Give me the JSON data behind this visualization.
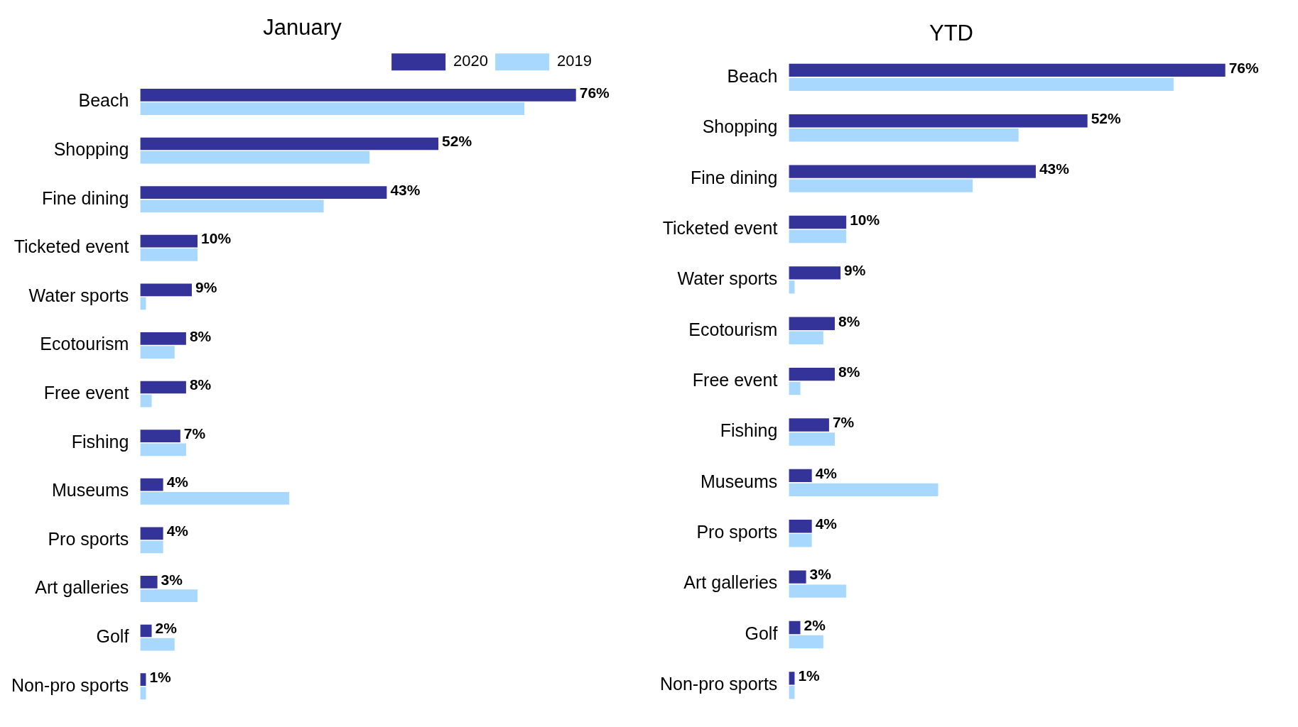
{
  "chart_data": [
    {
      "type": "bar",
      "orientation": "horizontal",
      "title": "January",
      "legend": "top right",
      "tick_labels": "y",
      "categories": [
        "Beach",
        "Shopping",
        "Fine dining",
        "Ticketed event",
        "Water sports",
        "Ecotourism",
        "Free event",
        "Fishing",
        "Museums",
        "Pro sports",
        "Art galleries",
        "Golf",
        "Non-pro sports"
      ],
      "series": [
        {
          "name": "2020",
          "color": "#333399",
          "values": [
            76,
            52,
            43,
            10,
            9,
            8,
            8,
            7,
            4,
            4,
            3,
            2,
            1
          ],
          "value_labels": [
            "76%",
            "52%",
            "43%",
            "10%",
            "9%",
            "8%",
            "8%",
            "7%",
            "4%",
            "4%",
            "3%",
            "2%",
            "1%"
          ]
        },
        {
          "name": "2019",
          "color": "#a9d8ff",
          "values": [
            67,
            40,
            32,
            10,
            1,
            6,
            2,
            8,
            26,
            4,
            10,
            6,
            1
          ]
        }
      ]
    },
    {
      "type": "bar",
      "orientation": "horizontal",
      "title": "YTD",
      "tick_labels": "y",
      "categories": [
        "Beach",
        "Shopping",
        "Fine dining",
        "Ticketed event",
        "Water sports",
        "Ecotourism",
        "Free event",
        "Fishing",
        "Museums",
        "Pro sports",
        "Art galleries",
        "Golf",
        "Non-pro sports"
      ],
      "series": [
        {
          "name": "2020",
          "color": "#333399",
          "values": [
            76,
            52,
            43,
            10,
            9,
            8,
            8,
            7,
            4,
            4,
            3,
            2,
            1
          ],
          "value_labels": [
            "76%",
            "52%",
            "43%",
            "10%",
            "9%",
            "8%",
            "8%",
            "7%",
            "4%",
            "4%",
            "3%",
            "2%",
            "1%"
          ]
        },
        {
          "name": "2019",
          "color": "#a9d8ff",
          "values": [
            67,
            40,
            32,
            10,
            1,
            6,
            2,
            8,
            26,
            4,
            10,
            6,
            1
          ]
        }
      ]
    }
  ]
}
